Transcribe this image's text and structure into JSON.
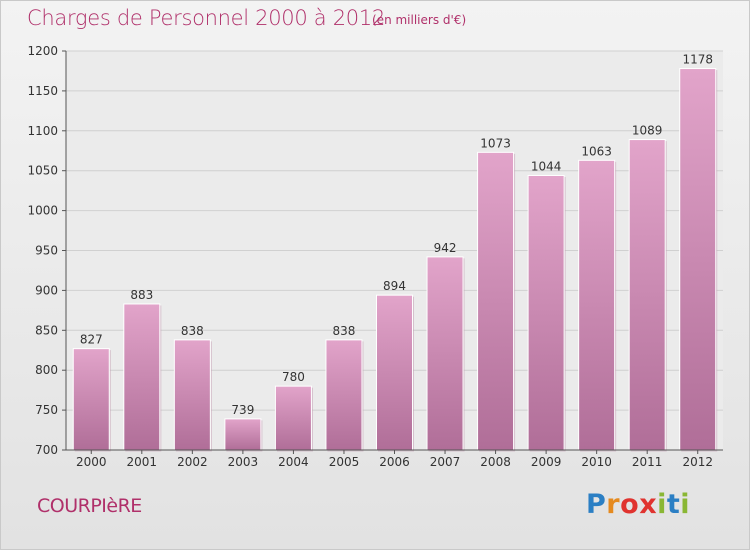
{
  "header": {
    "title": "Charges de Personnel 2000 à 2012",
    "unit": "(en milliers d'€)"
  },
  "footer": {
    "town": "COURPIèRE",
    "brand": "Proxiti"
  },
  "colors": {
    "accent": "#b0306a",
    "bar_top": "#e2a4ca",
    "bar_bottom": "#b06e98"
  },
  "chart_data": {
    "type": "bar",
    "title": "Charges de Personnel 2000 à 2012",
    "subtitle": "(en milliers d'€)",
    "categories": [
      "2000",
      "2001",
      "2002",
      "2003",
      "2004",
      "2005",
      "2006",
      "2007",
      "2008",
      "2009",
      "2010",
      "2011",
      "2012"
    ],
    "values": [
      827,
      883,
      838,
      739,
      780,
      838,
      894,
      942,
      1073,
      1044,
      1063,
      1089,
      1178
    ],
    "ylim": [
      700,
      1200
    ],
    "yticks": [
      700,
      750,
      800,
      850,
      900,
      950,
      1000,
      1050,
      1100,
      1150,
      1200
    ],
    "grid": true,
    "data_labels": true
  }
}
